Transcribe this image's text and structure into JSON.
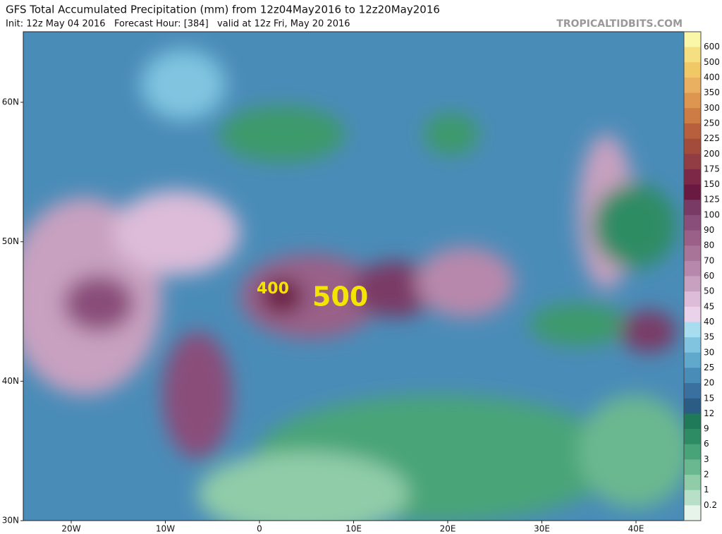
{
  "header": {
    "title": "GFS Total Accumulated Precipitation (mm) from 12z04May2016 to 12z20May2016",
    "subtitle": "Init: 12z May 04 2016   Forecast Hour: [384]   valid at 12z Fri, May 20 2016",
    "source": "TROPICALTIDBITS.COM"
  },
  "map": {
    "lat_labels": [
      "60N",
      "50N",
      "40N",
      "30N"
    ],
    "lon_labels": [
      "20W",
      "10W",
      "0",
      "10E",
      "20E",
      "30E",
      "40E"
    ],
    "annotations": [
      "400",
      "500"
    ]
  },
  "legend": {
    "labels": [
      600,
      500,
      400,
      350,
      300,
      250,
      225,
      200,
      175,
      150,
      125,
      100,
      90,
      80,
      70,
      60,
      50,
      45,
      40,
      35,
      30,
      25,
      20,
      15,
      12,
      9,
      6,
      3,
      2,
      1,
      0.2
    ],
    "colors": [
      "#fbf7a8",
      "#f5df80",
      "#f0c866",
      "#e8b060",
      "#dc9650",
      "#cc7c44",
      "#b8603e",
      "#a44c3c",
      "#923c44",
      "#7e2848",
      "#6a1a40",
      "#7a3a66",
      "#8a4e7a",
      "#9a6088",
      "#a87498",
      "#b888ac",
      "#c8a0c0",
      "#dcbcd8",
      "#ead2ea",
      "#a8dcef",
      "#80c4e0",
      "#60a8cc",
      "#4a8cb8",
      "#3a70a0",
      "#2a5c84",
      "#1e7a58",
      "#2e8c64",
      "#48a478",
      "#6ab890",
      "#90cca8",
      "#b8e0c8",
      "#e6f4ea"
    ]
  }
}
